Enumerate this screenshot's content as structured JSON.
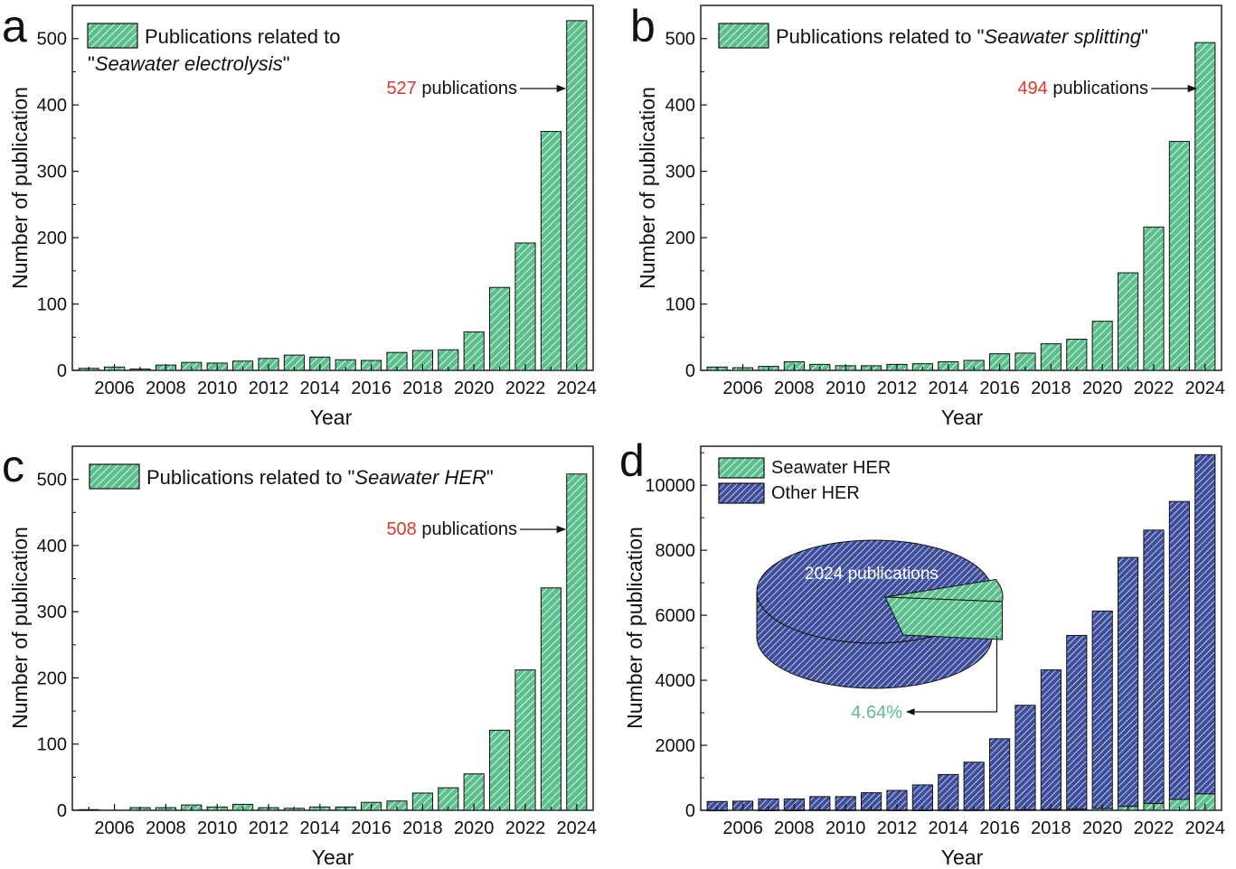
{
  "colors": {
    "green_fill": "#5cbf8c",
    "green_text": "#5cbf8c",
    "blue_fill": "#3d4f9c",
    "red_text": "#d93a2b",
    "axis": "#111111"
  },
  "chart_data": [
    {
      "type": "bar",
      "panel_letter": "a",
      "ylabel": "Number of publication",
      "xlabel": "Year",
      "ylim": [
        0,
        550
      ],
      "yticks": [
        0,
        100,
        200,
        300,
        400,
        500
      ],
      "categories": [
        2005,
        2006,
        2007,
        2008,
        2009,
        2010,
        2011,
        2012,
        2013,
        2014,
        2015,
        2016,
        2017,
        2018,
        2019,
        2020,
        2021,
        2022,
        2023,
        2024
      ],
      "xtick_labels": [
        "2006",
        "2008",
        "2010",
        "2012",
        "2014",
        "2016",
        "2018",
        "2020",
        "2022",
        "2024"
      ],
      "series": [
        {
          "name": "",
          "values": [
            3,
            5,
            2,
            8,
            12,
            11,
            14,
            18,
            23,
            20,
            16,
            15,
            27,
            30,
            31,
            58,
            125,
            192,
            360,
            527
          ]
        }
      ],
      "legend": {
        "position": "top-left",
        "entries": [
          {
            "parts": [
              {
                "text": "Publications related to"
              },
              {
                "text": "\"",
                "newline": true
              },
              {
                "text": "Seawater electrolysis",
                "italic": true
              },
              {
                "text": "\""
              }
            ]
          }
        ]
      },
      "annotation": {
        "value": "527",
        "text": " publications"
      }
    },
    {
      "type": "bar",
      "panel_letter": "b",
      "ylabel": "Number of publication",
      "xlabel": "Year",
      "ylim": [
        0,
        550
      ],
      "yticks": [
        0,
        100,
        200,
        300,
        400,
        500
      ],
      "categories": [
        2005,
        2006,
        2007,
        2008,
        2009,
        2010,
        2011,
        2012,
        2013,
        2014,
        2015,
        2016,
        2017,
        2018,
        2019,
        2020,
        2021,
        2022,
        2023,
        2024
      ],
      "xtick_labels": [
        "2006",
        "2008",
        "2010",
        "2012",
        "2014",
        "2016",
        "2018",
        "2020",
        "2022",
        "2024"
      ],
      "series": [
        {
          "name": "",
          "values": [
            5,
            4,
            6,
            13,
            9,
            7,
            7,
            9,
            10,
            13,
            15,
            25,
            26,
            40,
            47,
            74,
            147,
            216,
            345,
            494
          ]
        }
      ],
      "legend": {
        "position": "top-left",
        "entries": [
          {
            "parts": [
              {
                "text": "Publications related to \""
              },
              {
                "text": "Seawater splitting",
                "italic": true
              },
              {
                "text": "\""
              }
            ]
          }
        ]
      },
      "annotation": {
        "value": "494",
        "text": " publications"
      }
    },
    {
      "type": "bar",
      "panel_letter": "c",
      "ylabel": "Number of publication",
      "xlabel": "Year",
      "ylim": [
        0,
        550
      ],
      "yticks": [
        0,
        100,
        200,
        300,
        400,
        500
      ],
      "categories": [
        2005,
        2006,
        2007,
        2008,
        2009,
        2010,
        2011,
        2012,
        2013,
        2014,
        2015,
        2016,
        2017,
        2018,
        2019,
        2020,
        2021,
        2022,
        2023,
        2024
      ],
      "xtick_labels": [
        "2006",
        "2008",
        "2010",
        "2012",
        "2014",
        "2016",
        "2018",
        "2020",
        "2022",
        "2024"
      ],
      "series": [
        {
          "name": "",
          "values": [
            1,
            0,
            4,
            4,
            8,
            5,
            9,
            4,
            3,
            5,
            5,
            12,
            14,
            26,
            34,
            55,
            121,
            212,
            336,
            508
          ]
        }
      ],
      "legend": {
        "position": "top-left",
        "entries": [
          {
            "parts": [
              {
                "text": "Publications related to \""
              },
              {
                "text": "Seawater HER",
                "italic": true
              },
              {
                "text": "\""
              }
            ]
          }
        ]
      },
      "annotation": {
        "value": "508",
        "text": " publications"
      }
    },
    {
      "type": "bar",
      "panel_letter": "d",
      "stacked": true,
      "ylabel": "Number of publication",
      "xlabel": "Year",
      "ylim": [
        0,
        11200
      ],
      "yticks": [
        0,
        2000,
        4000,
        6000,
        8000,
        10000
      ],
      "categories": [
        2005,
        2006,
        2007,
        2008,
        2009,
        2010,
        2011,
        2012,
        2013,
        2014,
        2015,
        2016,
        2017,
        2018,
        2019,
        2020,
        2021,
        2022,
        2023,
        2024
      ],
      "xtick_labels": [
        "2006",
        "2008",
        "2010",
        "2012",
        "2014",
        "2016",
        "2018",
        "2020",
        "2022",
        "2024"
      ],
      "series": [
        {
          "name": "Seawater HER",
          "values": [
            1,
            0,
            4,
            4,
            8,
            5,
            9,
            4,
            3,
            5,
            5,
            12,
            14,
            26,
            34,
            55,
            121,
            212,
            336,
            508
          ]
        },
        {
          "name": "Other HER",
          "values": [
            269,
            280,
            346,
            346,
            412,
            415,
            531,
            606,
            777,
            1095,
            1475,
            2188,
            3216,
            4294,
            5346,
            6075,
            7659,
            8408,
            9164,
            10432
          ]
        }
      ],
      "legend": {
        "position": "top-left",
        "entries": [
          {
            "parts": [
              {
                "text": "Seawater HER"
              }
            ]
          },
          {
            "parts": [
              {
                "text": "Other HER"
              }
            ]
          }
        ]
      },
      "inset_pie": {
        "type": "pie",
        "title": "2024 publications",
        "slices": [
          {
            "name": "Seawater HER",
            "value": 4.64
          },
          {
            "name": "Other HER",
            "value": 95.36
          }
        ],
        "label": "4.64%"
      }
    }
  ]
}
